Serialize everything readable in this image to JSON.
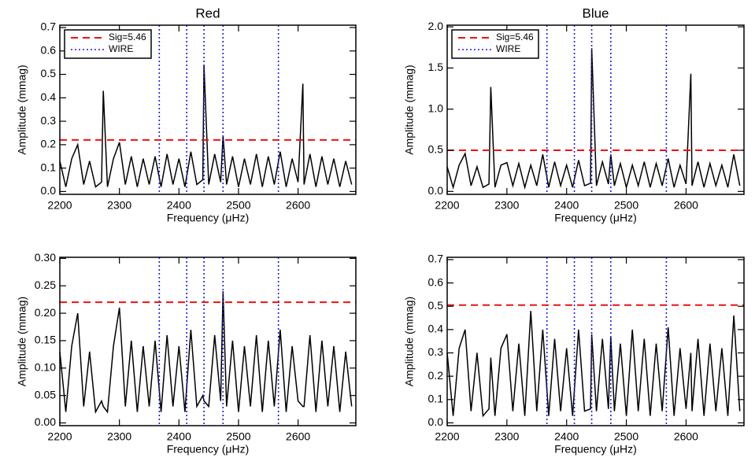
{
  "chart_data": [
    {
      "type": "line",
      "title": "Red",
      "xlabel": "Frequency (μHz)",
      "ylabel": "Amplitude (mmag)",
      "xlim": [
        2200,
        2697
      ],
      "xticks": [
        2200,
        2300,
        2400,
        2500,
        2600
      ],
      "ylim": [
        -0.012,
        0.71
      ],
      "yticks": [
        {
          "value": 0,
          "label": "0.0"
        },
        0.1,
        0.2,
        0.3,
        0.4,
        0.5,
        0.6,
        0.7
      ],
      "x": [
        2200,
        2210,
        2220,
        2230,
        2240,
        2250,
        2260,
        2270,
        2273,
        2280,
        2290,
        2300,
        2310,
        2320,
        2330,
        2340,
        2350,
        2360,
        2370,
        2380,
        2390,
        2400,
        2410,
        2420,
        2430,
        2440,
        2442,
        2450,
        2460,
        2470,
        2474,
        2480,
        2490,
        2500,
        2510,
        2520,
        2530,
        2540,
        2550,
        2560,
        2570,
        2580,
        2590,
        2600,
        2608,
        2610,
        2620,
        2630,
        2640,
        2650,
        2660,
        2670,
        2680,
        2690
      ],
      "series": [
        {
          "color": "#000000",
          "values": [
            0.13,
            0.02,
            0.14,
            0.2,
            0.03,
            0.13,
            0.02,
            0.04,
            0.43,
            0.02,
            0.14,
            0.21,
            0.03,
            0.15,
            0.02,
            0.14,
            0.03,
            0.15,
            0.02,
            0.16,
            0.03,
            0.14,
            0.02,
            0.17,
            0.03,
            0.05,
            0.54,
            0.03,
            0.16,
            0.04,
            0.24,
            0.03,
            0.15,
            0.02,
            0.14,
            0.03,
            0.16,
            0.02,
            0.15,
            0.03,
            0.17,
            0.02,
            0.14,
            0.04,
            0.46,
            0.03,
            0.16,
            0.02,
            0.15,
            0.03,
            0.14,
            0.02,
            0.13,
            0.03
          ]
        }
      ],
      "threshold": {
        "name": "Sig=5.46",
        "value": 0.22,
        "color": "#ee1111"
      },
      "markers": {
        "name": "WIRE",
        "x": [
          2367,
          2413,
          2442,
          2474,
          2567
        ],
        "color": "#1a1aee"
      }
    },
    {
      "type": "line",
      "title": "Blue",
      "xlabel": "Frequency (μHz)",
      "ylabel": "Amplitude (mmag)",
      "xlim": [
        2200,
        2697
      ],
      "xticks": [
        2200,
        2300,
        2400,
        2500,
        2600
      ],
      "ylim": [
        -0.035,
        2.02
      ],
      "yticks": [
        {
          "value": 0,
          "label": "0.0"
        },
        0.5,
        {
          "value": 1,
          "label": "1.0"
        },
        1.5,
        {
          "value": 2,
          "label": "2.0"
        }
      ],
      "x": [
        2200,
        2210,
        2220,
        2230,
        2240,
        2250,
        2260,
        2270,
        2273,
        2280,
        2290,
        2300,
        2310,
        2320,
        2330,
        2340,
        2350,
        2360,
        2370,
        2380,
        2390,
        2400,
        2410,
        2420,
        2430,
        2440,
        2442,
        2450,
        2460,
        2470,
        2474,
        2480,
        2490,
        2500,
        2510,
        2520,
        2530,
        2540,
        2550,
        2560,
        2570,
        2580,
        2590,
        2600,
        2608,
        2610,
        2620,
        2630,
        2640,
        2650,
        2660,
        2670,
        2680,
        2690
      ],
      "series": [
        {
          "color": "#000000",
          "values": [
            0.3,
            0.05,
            0.32,
            0.46,
            0.07,
            0.3,
            0.05,
            0.09,
            1.27,
            0.05,
            0.32,
            0.35,
            0.07,
            0.34,
            0.05,
            0.32,
            0.07,
            0.45,
            0.05,
            0.36,
            0.07,
            0.32,
            0.05,
            0.38,
            0.07,
            0.1,
            1.74,
            0.07,
            0.36,
            0.09,
            0.45,
            0.07,
            0.34,
            0.05,
            0.32,
            0.07,
            0.36,
            0.05,
            0.34,
            0.07,
            0.4,
            0.05,
            0.32,
            0.09,
            1.43,
            0.07,
            0.36,
            0.05,
            0.34,
            0.07,
            0.32,
            0.05,
            0.45,
            0.07
          ]
        }
      ],
      "threshold": {
        "name": "Sig=5.46",
        "value": 0.5,
        "color": "#ee1111"
      },
      "markers": {
        "name": "WIRE",
        "x": [
          2367,
          2413,
          2442,
          2474,
          2567
        ],
        "color": "#1a1aee"
      }
    },
    {
      "type": "line",
      "xlabel": "Frequency (μHz)",
      "ylabel": "Amplitude (mmag)",
      "xlim": [
        2200,
        2697
      ],
      "xticks": [
        2200,
        2300,
        2400,
        2500,
        2600
      ],
      "ylim": [
        -0.005,
        0.302
      ],
      "yticks": [
        {
          "value": 0,
          "label": "0.00"
        },
        0.05,
        {
          "value": 0.1,
          "label": "0.10"
        },
        0.15,
        {
          "value": 0.2,
          "label": "0.20"
        },
        0.25,
        {
          "value": 0.3,
          "label": "0.30"
        }
      ],
      "x": [
        2200,
        2210,
        2220,
        2230,
        2240,
        2250,
        2260,
        2270,
        2273,
        2280,
        2290,
        2300,
        2310,
        2320,
        2330,
        2340,
        2350,
        2360,
        2370,
        2380,
        2390,
        2400,
        2410,
        2420,
        2430,
        2440,
        2442,
        2450,
        2460,
        2470,
        2474,
        2480,
        2490,
        2500,
        2510,
        2520,
        2530,
        2540,
        2550,
        2560,
        2570,
        2580,
        2590,
        2600,
        2608,
        2610,
        2620,
        2630,
        2640,
        2650,
        2660,
        2670,
        2680,
        2690
      ],
      "series": [
        {
          "color": "#000000",
          "values": [
            0.13,
            0.02,
            0.14,
            0.2,
            0.03,
            0.13,
            0.02,
            0.04,
            0.03,
            0.02,
            0.14,
            0.21,
            0.03,
            0.15,
            0.02,
            0.14,
            0.03,
            0.15,
            0.02,
            0.16,
            0.03,
            0.14,
            0.02,
            0.17,
            0.03,
            0.05,
            0.04,
            0.03,
            0.16,
            0.04,
            0.24,
            0.03,
            0.15,
            0.02,
            0.14,
            0.03,
            0.16,
            0.02,
            0.15,
            0.03,
            0.17,
            0.02,
            0.14,
            0.04,
            0.03,
            0.03,
            0.16,
            0.02,
            0.15,
            0.03,
            0.14,
            0.02,
            0.13,
            0.03
          ]
        }
      ],
      "threshold": {
        "value": 0.22,
        "color": "#ee1111"
      },
      "markers": {
        "x": [
          2367,
          2413,
          2442,
          2474,
          2567
        ],
        "color": "#1a1aee"
      }
    },
    {
      "type": "line",
      "xlabel": "Frequency (μHz)",
      "ylabel": "Amplitude (mmag)",
      "xlim": [
        2200,
        2697
      ],
      "xticks": [
        2200,
        2300,
        2400,
        2500,
        2600
      ],
      "ylim": [
        -0.012,
        0.71
      ],
      "yticks": [
        {
          "value": 0,
          "label": "0.0"
        },
        0.1,
        0.2,
        0.3,
        0.4,
        0.5,
        0.6,
        0.7
      ],
      "x": [
        2200,
        2210,
        2220,
        2230,
        2240,
        2250,
        2260,
        2270,
        2273,
        2280,
        2290,
        2300,
        2310,
        2320,
        2330,
        2340,
        2350,
        2360,
        2370,
        2380,
        2390,
        2400,
        2410,
        2420,
        2430,
        2440,
        2442,
        2450,
        2460,
        2470,
        2474,
        2480,
        2490,
        2500,
        2510,
        2520,
        2530,
        2540,
        2550,
        2560,
        2570,
        2580,
        2590,
        2600,
        2608,
        2610,
        2620,
        2630,
        2640,
        2650,
        2660,
        2670,
        2680,
        2690
      ],
      "series": [
        {
          "color": "#000000",
          "values": [
            0.3,
            0.03,
            0.32,
            0.4,
            0.05,
            0.3,
            0.03,
            0.06,
            0.28,
            0.03,
            0.32,
            0.38,
            0.05,
            0.34,
            0.03,
            0.48,
            0.05,
            0.4,
            0.03,
            0.36,
            0.05,
            0.32,
            0.03,
            0.4,
            0.05,
            0.06,
            0.38,
            0.05,
            0.36,
            0.06,
            0.37,
            0.05,
            0.34,
            0.03,
            0.4,
            0.05,
            0.36,
            0.03,
            0.34,
            0.05,
            0.41,
            0.03,
            0.32,
            0.06,
            0.3,
            0.05,
            0.36,
            0.03,
            0.34,
            0.05,
            0.32,
            0.03,
            0.46,
            0.05
          ]
        }
      ],
      "threshold": {
        "value": 0.505,
        "color": "#ee1111"
      },
      "markers": {
        "x": [
          2367,
          2413,
          2442,
          2474,
          2567
        ],
        "color": "#1a1aee"
      }
    }
  ]
}
